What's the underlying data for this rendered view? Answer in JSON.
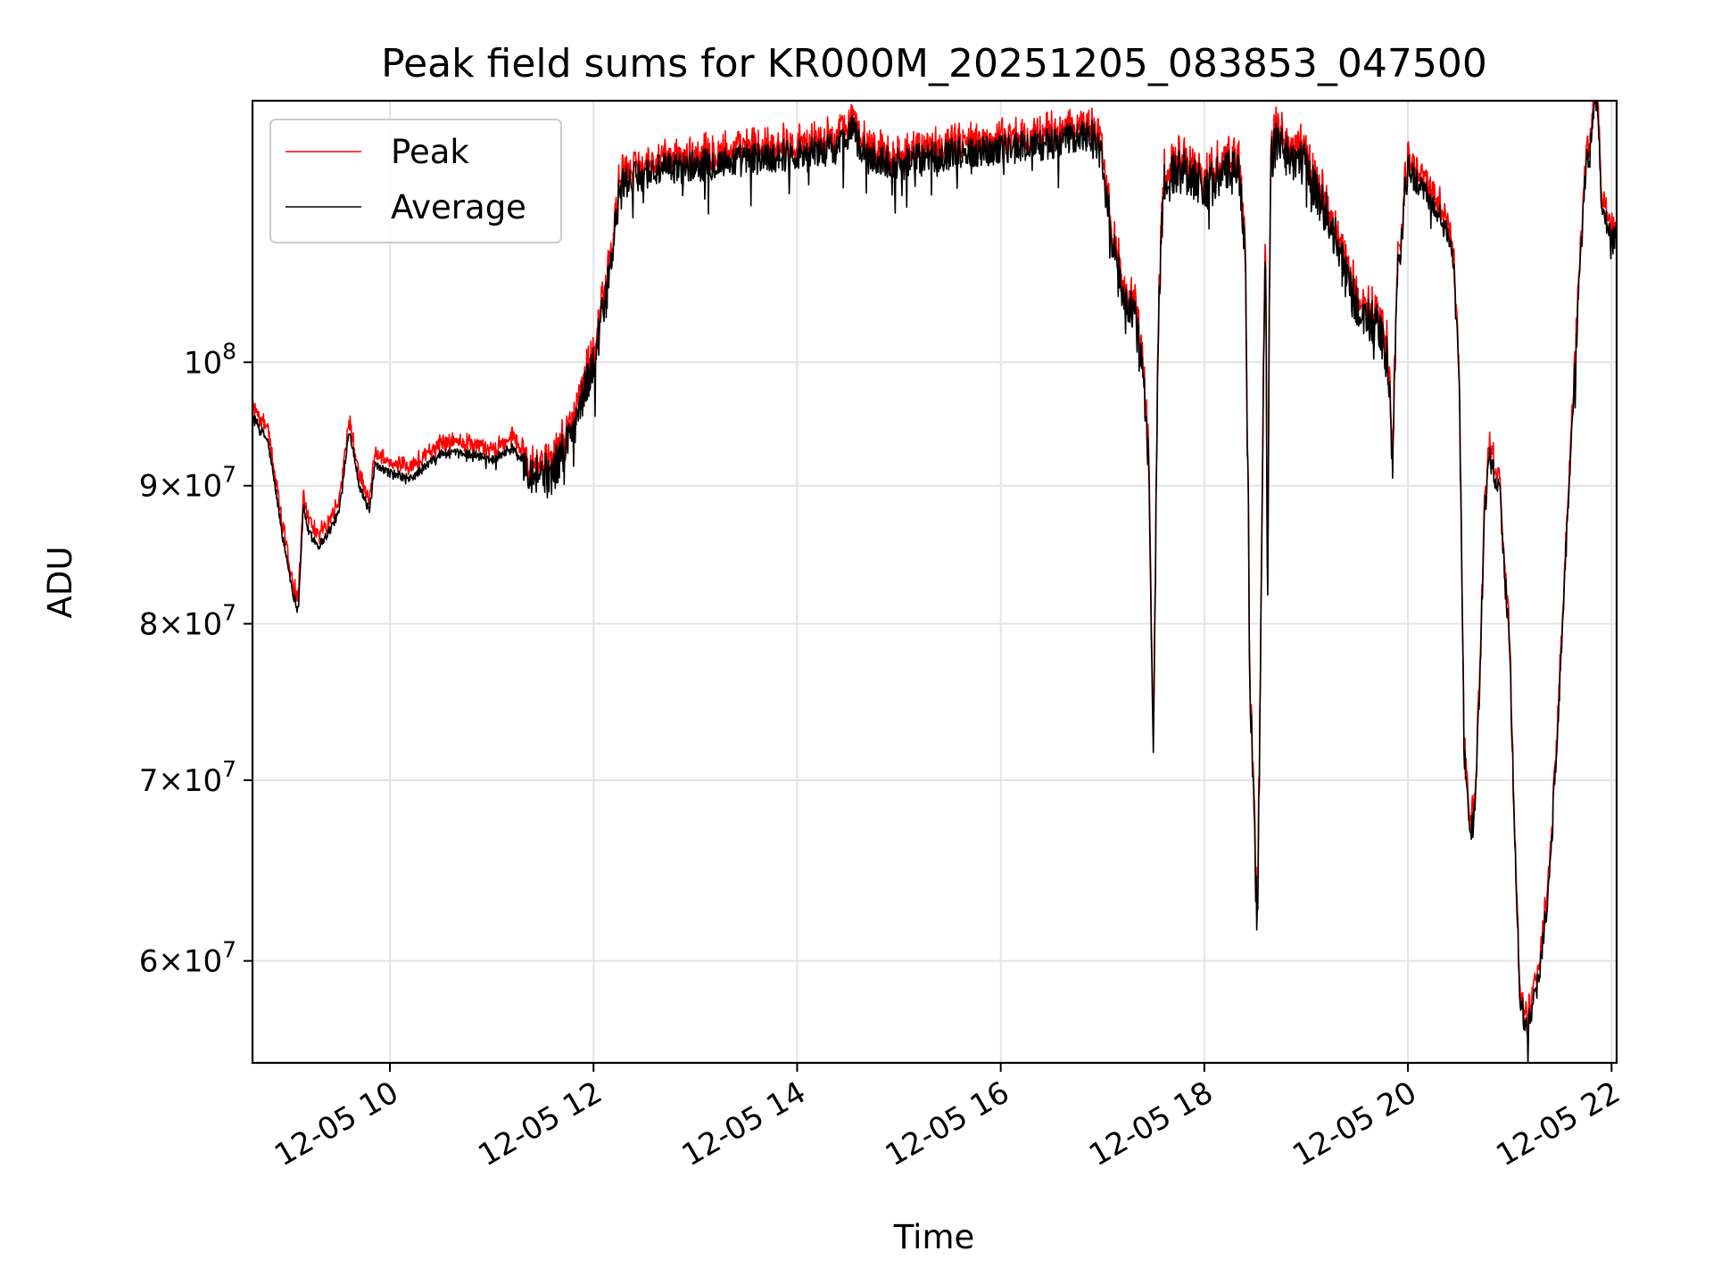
{
  "chart_data": {
    "type": "line",
    "title": "Peak field sums for KR000M_20251205_083853_047500",
    "xlabel": "Time",
    "ylabel": "ADU",
    "yscale": "log",
    "ylim": [
      55000000,
      125000000
    ],
    "xlim_hours": [
      8.65,
      22.05
    ],
    "grid": true,
    "legend_position": "top-left",
    "x_ticks": [
      {
        "hour": 10,
        "label": "12-05 10"
      },
      {
        "hour": 12,
        "label": "12-05 12"
      },
      {
        "hour": 14,
        "label": "12-05 14"
      },
      {
        "hour": 16,
        "label": "12-05 16"
      },
      {
        "hour": 18,
        "label": "12-05 18"
      },
      {
        "hour": 20,
        "label": "12-05 20"
      },
      {
        "hour": 22,
        "label": "12-05 22"
      }
    ],
    "y_ticks": [
      {
        "value": 60000000,
        "mant": "6",
        "exp": "7"
      },
      {
        "value": 70000000,
        "mant": "7",
        "exp": "7"
      },
      {
        "value": 80000000,
        "mant": "8",
        "exp": "7"
      },
      {
        "value": 90000000,
        "mant": "9",
        "exp": "7"
      },
      {
        "value": 100000000,
        "mant": "",
        "exp": "8"
      }
    ],
    "series": [
      {
        "name": "Peak",
        "color": "#ff0000",
        "offset_fraction": 0.012,
        "noise": 0.6
      },
      {
        "name": "Average",
        "color": "#000000",
        "offset_fraction": 0.0,
        "noise": 0.4
      }
    ],
    "x_hours": [
      8.65,
      8.8,
      8.95,
      9.05,
      9.1,
      9.15,
      9.2,
      9.3,
      9.4,
      9.5,
      9.6,
      9.7,
      9.8,
      9.85,
      10.0,
      10.2,
      10.5,
      10.8,
      11.0,
      11.2,
      11.4,
      11.6,
      11.8,
      12.0,
      12.15,
      12.25,
      12.3,
      12.5,
      12.8,
      13.2,
      13.6,
      14.0,
      14.4,
      14.55,
      14.6,
      14.7,
      15.0,
      15.5,
      16.0,
      16.5,
      16.9,
      17.0,
      17.1,
      17.2,
      17.3,
      17.4,
      17.45,
      17.5,
      17.55,
      17.6,
      17.8,
      18.0,
      18.2,
      18.35,
      18.4,
      18.45,
      18.5,
      18.52,
      18.55,
      18.6,
      18.62,
      18.65,
      18.7,
      19.0,
      19.2,
      19.3,
      19.5,
      19.7,
      19.8,
      19.85,
      19.9,
      20.0,
      20.2,
      20.35,
      20.45,
      20.5,
      20.55,
      20.6,
      20.65,
      20.7,
      20.75,
      20.8,
      20.9,
      21.0,
      21.05,
      21.1,
      21.15,
      21.2,
      21.3,
      21.4,
      21.5,
      21.6,
      21.7,
      21.75,
      21.8,
      21.85,
      21.9,
      22.0
    ],
    "average_values": [
      95500000,
      93500000,
      86000000,
      82000000,
      81000000,
      88500000,
      86500000,
      85500000,
      86500000,
      88000000,
      94500000,
      90000000,
      88000000,
      91500000,
      91000000,
      90500000,
      92500000,
      92500000,
      92000000,
      93000000,
      91000000,
      91000000,
      94500000,
      100000000,
      107000000,
      115000000,
      116500000,
      117500000,
      118000000,
      118500000,
      119000000,
      119500000,
      120000000,
      122500000,
      120500000,
      119000000,
      118500000,
      119500000,
      120000000,
      120500000,
      121500000,
      119000000,
      110000000,
      106000000,
      104500000,
      99000000,
      92000000,
      71000000,
      104000000,
      116500000,
      118000000,
      116000000,
      117500000,
      117500000,
      110000000,
      75500000,
      65000000,
      62000000,
      75000000,
      112500000,
      80000000,
      118500000,
      120500000,
      118000000,
      113500000,
      110500000,
      104500000,
      103000000,
      100000000,
      92000000,
      108000000,
      118000000,
      115000000,
      112500000,
      109000000,
      100000000,
      72000000,
      67000000,
      67500000,
      75000000,
      87500000,
      92500000,
      89500000,
      78000000,
      66000000,
      58000000,
      57000000,
      57000000,
      59500000,
      65000000,
      77000000,
      92500000,
      110000000,
      118500000,
      120500000,
      126500000,
      115000000,
      111000000
    ]
  }
}
